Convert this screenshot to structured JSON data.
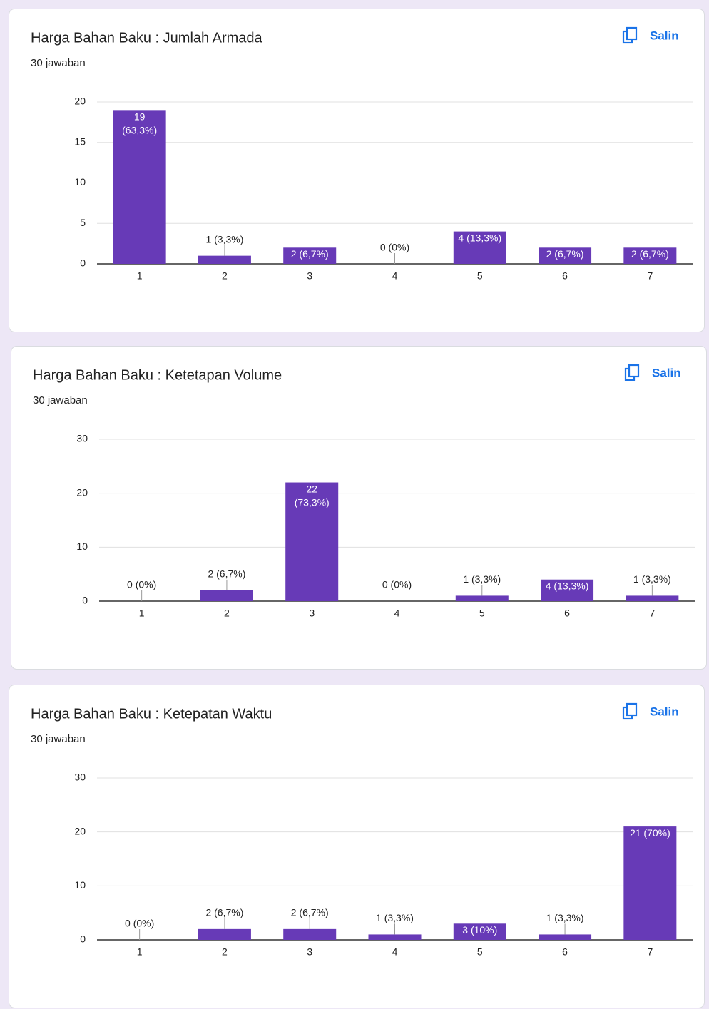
{
  "chart_data": [
    {
      "type": "bar",
      "title": "Harga Bahan Baku : Jumlah Armada",
      "subtitle": "30 jawaban",
      "copy_label": "Salin",
      "categories": [
        "1",
        "2",
        "3",
        "4",
        "5",
        "6",
        "7"
      ],
      "values": [
        19,
        1,
        2,
        0,
        4,
        2,
        2
      ],
      "value_labels": [
        "19 (63,3%)",
        "1 (3,3%)",
        "2 (6,7%)",
        "0 (0%)",
        "4 (13,3%)",
        "2 (6,7%)",
        "2 (6,7%)"
      ],
      "ylim": [
        0,
        20
      ],
      "yticks": [
        0,
        5,
        10,
        15,
        20
      ],
      "color": "#673ab7",
      "grid": true
    },
    {
      "type": "bar",
      "title": "Harga Bahan Baku : Ketetapan Volume",
      "subtitle": "30 jawaban",
      "copy_label": "Salin",
      "categories": [
        "1",
        "2",
        "3",
        "4",
        "5",
        "6",
        "7"
      ],
      "values": [
        0,
        2,
        22,
        0,
        1,
        4,
        1
      ],
      "value_labels": [
        "0 (0%)",
        "2 (6,7%)",
        "22 (73,3%)",
        "0 (0%)",
        "1 (3,3%)",
        "4 (13,3%)",
        "1 (3,3%)"
      ],
      "ylim": [
        0,
        30
      ],
      "yticks": [
        0,
        10,
        20,
        30
      ],
      "color": "#673ab7",
      "grid": true
    },
    {
      "type": "bar",
      "title": "Harga Bahan Baku : Ketepatan Waktu",
      "subtitle": "30 jawaban",
      "copy_label": "Salin",
      "categories": [
        "1",
        "2",
        "3",
        "4",
        "5",
        "6",
        "7"
      ],
      "values": [
        0,
        2,
        2,
        1,
        3,
        1,
        21
      ],
      "value_labels": [
        "0 (0%)",
        "2 (6,7%)",
        "2 (6,7%)",
        "1 (3,3%)",
        "3 (10%)",
        "1 (3,3%)",
        "21 (70%)"
      ],
      "ylim": [
        0,
        30
      ],
      "yticks": [
        0,
        10,
        20,
        30
      ],
      "color": "#673ab7",
      "grid": true
    }
  ]
}
